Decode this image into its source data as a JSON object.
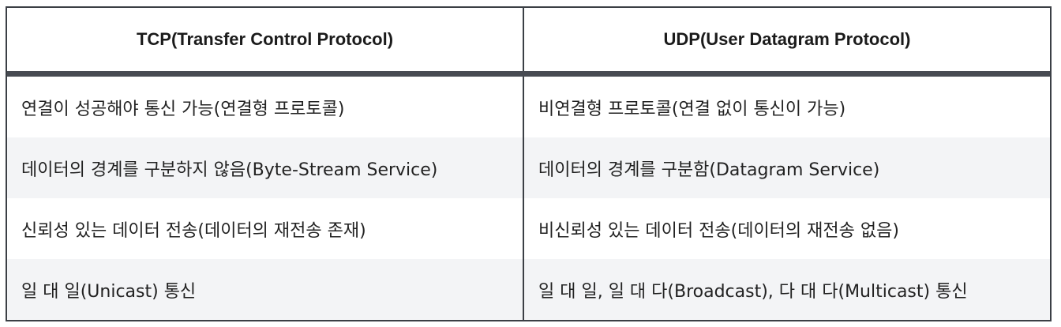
{
  "table": {
    "headers": [
      "TCP(Transfer Control Protocol)",
      "UDP(User Datagram Protocol)"
    ],
    "rows": [
      [
        "연결이 성공해야 통신 가능(연결형 프로토콜)",
        "비연결형 프로토콜(연결 없이 통신이 가능)"
      ],
      [
        "데이터의 경계를 구분하지 않음(Byte-Stream Service)",
        "데이터의 경계를 구분함(Datagram Service)"
      ],
      [
        "신뢰성 있는 데이터 전송(데이터의 재전송 존재)",
        "비신뢰성 있는 데이터 전송(데이터의 재전송 없음)"
      ],
      [
        "일 대 일(Unicast) 통신",
        "일 대 일, 일 대 다(Broadcast), 다 대 다(Multicast) 통신"
      ]
    ]
  }
}
